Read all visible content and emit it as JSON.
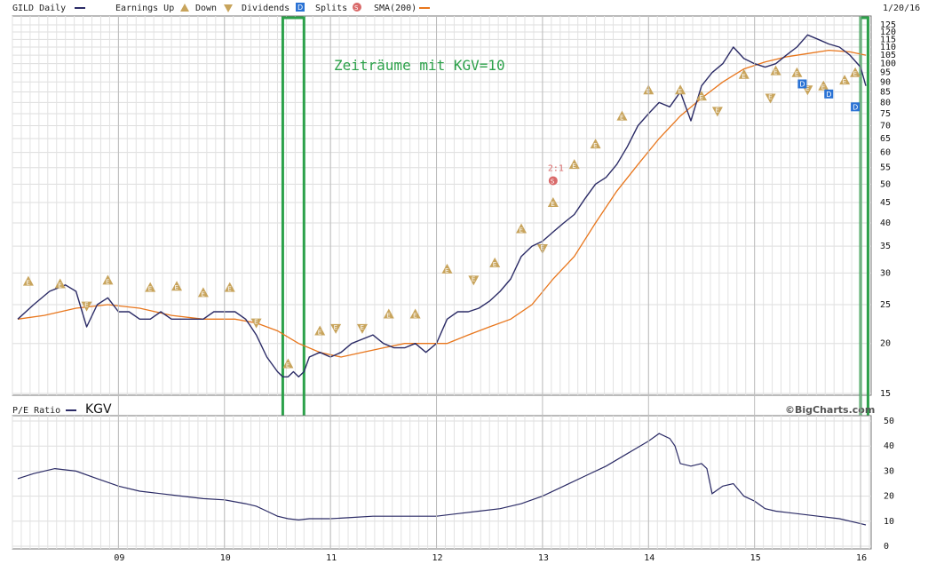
{
  "chart_data": [
    {
      "type": "line",
      "legend": {
        "symbol": "GILD Daily",
        "earnings_up": "Earnings Up",
        "earnings_down": "Down",
        "dividends": "Dividends",
        "splits": "Splits",
        "sma": "SMA(200)"
      },
      "date_label": "1/20/16",
      "annotation": "Zeiträume mit KGV=10",
      "split_label": "2:1",
      "y_scale": "log",
      "ylim": [
        15,
        125
      ],
      "y_ticks": [
        "125",
        "120",
        "115",
        "110",
        "105",
        "100",
        "95",
        "90",
        "85",
        "80",
        "75",
        "70",
        "65",
        "60",
        "55",
        "50",
        "45",
        "40",
        "35",
        "30",
        "25",
        "20",
        "15"
      ],
      "x_ticks": [
        "09",
        "10",
        "11",
        "12",
        "13",
        "14",
        "15",
        "16"
      ],
      "colors": {
        "price": "#2b2b66",
        "sma": "#e8761c",
        "earnings": "#c8a45c",
        "dividend": "#2a72d4",
        "split": "#d96a6a",
        "highlight": "#2ca14a"
      },
      "series": [
        {
          "name": "GILD Daily",
          "x": [
            2008.05,
            2008.2,
            2008.35,
            2008.5,
            2008.6,
            2008.7,
            2008.8,
            2008.9,
            2009.0,
            2009.1,
            2009.2,
            2009.3,
            2009.4,
            2009.5,
            2009.6,
            2009.7,
            2009.8,
            2009.9,
            2010.0,
            2010.1,
            2010.2,
            2010.25,
            2010.3,
            2010.4,
            2010.5,
            2010.55,
            2010.6,
            2010.65,
            2010.7,
            2010.75,
            2010.8,
            2010.9,
            2011.0,
            2011.1,
            2011.2,
            2011.3,
            2011.4,
            2011.5,
            2011.6,
            2011.7,
            2011.8,
            2011.9,
            2012.0,
            2012.1,
            2012.2,
            2012.3,
            2012.4,
            2012.5,
            2012.6,
            2012.7,
            2012.8,
            2012.9,
            2013.0,
            2013.1,
            2013.2,
            2013.3,
            2013.4,
            2013.5,
            2013.6,
            2013.7,
            2013.8,
            2013.9,
            2014.0,
            2014.1,
            2014.2,
            2014.3,
            2014.4,
            2014.5,
            2014.6,
            2014.7,
            2014.8,
            2014.9,
            2015.0,
            2015.1,
            2015.2,
            2015.3,
            2015.4,
            2015.5,
            2015.6,
            2015.7,
            2015.8,
            2015.9,
            2016.0,
            2016.05
          ],
          "values": [
            23,
            25,
            27,
            28,
            27,
            22,
            25,
            26,
            24,
            24,
            23,
            23,
            24,
            23,
            23,
            23,
            23,
            24,
            24,
            24,
            23,
            22,
            21,
            18.5,
            17,
            16.5,
            16.5,
            17,
            16.5,
            17,
            18.5,
            19,
            18.5,
            19,
            20,
            20.5,
            21,
            20,
            19.5,
            19.5,
            20,
            19,
            20,
            23,
            24,
            24,
            24.5,
            25.5,
            27,
            29,
            33,
            35,
            36,
            38,
            40,
            42,
            46,
            50,
            52,
            56,
            62,
            70,
            75,
            80,
            78,
            85,
            72,
            88,
            95,
            100,
            110,
            103,
            100,
            98,
            100,
            105,
            110,
            118,
            115,
            112,
            110,
            105,
            98,
            88
          ]
        },
        {
          "name": "SMA(200)",
          "x": [
            2008.05,
            2008.3,
            2008.6,
            2008.9,
            2009.2,
            2009.5,
            2009.8,
            2010.1,
            2010.3,
            2010.5,
            2010.7,
            2010.9,
            2011.1,
            2011.3,
            2011.5,
            2011.7,
            2011.9,
            2012.1,
            2012.3,
            2012.5,
            2012.7,
            2012.9,
            2013.1,
            2013.3,
            2013.5,
            2013.7,
            2013.9,
            2014.1,
            2014.3,
            2014.5,
            2014.7,
            2014.9,
            2015.1,
            2015.3,
            2015.5,
            2015.7,
            2015.9,
            2016.05
          ],
          "values": [
            23,
            23.5,
            24.5,
            25,
            24.5,
            23.5,
            23,
            23,
            22.5,
            21.5,
            20,
            19,
            18.5,
            19,
            19.5,
            20,
            20,
            20,
            21,
            22,
            23,
            25,
            29,
            33,
            40,
            48,
            56,
            65,
            74,
            82,
            90,
            97,
            101,
            104,
            106,
            108,
            107,
            105
          ]
        }
      ],
      "earnings_up": [
        [
          2008.15,
          28.6
        ],
        [
          2008.45,
          28.2
        ],
        [
          2008.9,
          28.8
        ],
        [
          2009.3,
          27.6
        ],
        [
          2009.55,
          27.8
        ],
        [
          2009.8,
          26.8
        ],
        [
          2010.05,
          27.6
        ],
        [
          2010.6,
          17.8
        ],
        [
          2010.9,
          21.5
        ],
        [
          2011.55,
          23.7
        ],
        [
          2011.8,
          23.7
        ],
        [
          2012.1,
          30.7
        ],
        [
          2012.55,
          31.8
        ],
        [
          2012.8,
          38.7
        ],
        [
          2013.1,
          45
        ],
        [
          2013.3,
          56
        ],
        [
          2013.5,
          63
        ],
        [
          2013.75,
          74
        ],
        [
          2014.0,
          86
        ],
        [
          2014.3,
          86
        ],
        [
          2014.5,
          83
        ],
        [
          2014.9,
          94
        ],
        [
          2015.2,
          96
        ],
        [
          2015.4,
          95
        ],
        [
          2015.65,
          88
        ],
        [
          2015.85,
          91
        ],
        [
          2015.95,
          95
        ]
      ],
      "earnings_down": [
        [
          2008.7,
          24.8
        ],
        [
          2010.3,
          22.5
        ],
        [
          2011.05,
          21.8
        ],
        [
          2011.3,
          21.8
        ],
        [
          2012.35,
          28.8
        ],
        [
          2013.0,
          34.5
        ],
        [
          2014.65,
          76
        ],
        [
          2015.15,
          82
        ],
        [
          2015.5,
          86
        ]
      ],
      "dividends": [
        [
          2015.45,
          89
        ],
        [
          2015.7,
          84
        ],
        [
          2015.95,
          78
        ]
      ],
      "splits": [
        [
          2013.1,
          51
        ]
      ],
      "highlight_periods": [
        [
          2010.55,
          2010.75
        ],
        [
          2016.0,
          2016.07
        ]
      ]
    },
    {
      "type": "line",
      "title": "P/E Ratio",
      "legend_label": "KGV",
      "watermark": "©BigCharts.com",
      "ylim": [
        0,
        50
      ],
      "y_ticks": [
        "50",
        "40",
        "30",
        "20",
        "10",
        "0"
      ],
      "series": [
        {
          "name": "KGV",
          "x": [
            2008.05,
            2008.2,
            2008.4,
            2008.6,
            2008.8,
            2009.0,
            2009.2,
            2009.4,
            2009.6,
            2009.8,
            2010.0,
            2010.2,
            2010.3,
            2010.4,
            2010.5,
            2010.6,
            2010.7,
            2010.8,
            2011.0,
            2011.2,
            2011.4,
            2011.6,
            2011.8,
            2012.0,
            2012.2,
            2012.4,
            2012.6,
            2012.8,
            2013.0,
            2013.2,
            2013.4,
            2013.6,
            2013.8,
            2014.0,
            2014.1,
            2014.2,
            2014.25,
            2014.3,
            2014.4,
            2014.5,
            2014.55,
            2014.6,
            2014.7,
            2014.8,
            2014.9,
            2015.0,
            2015.1,
            2015.2,
            2015.4,
            2015.6,
            2015.8,
            2016.0,
            2016.05
          ],
          "values": [
            27,
            29,
            31,
            30,
            27,
            24,
            22,
            21,
            20,
            19,
            18.5,
            17,
            16,
            14,
            12,
            11,
            10.5,
            11,
            11,
            11.5,
            12,
            12,
            12,
            12,
            13,
            14,
            15,
            17,
            20,
            24,
            28,
            32,
            37,
            42,
            45,
            43,
            40,
            33,
            32,
            33,
            31,
            21,
            24,
            25,
            20,
            18,
            15,
            14,
            13,
            12,
            11,
            9,
            8.5
          ]
        }
      ]
    }
  ]
}
